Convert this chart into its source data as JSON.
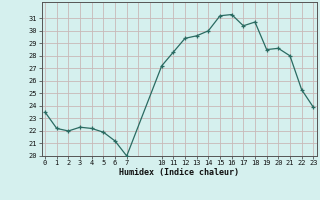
{
  "x": [
    0,
    1,
    2,
    3,
    4,
    5,
    6,
    7,
    10,
    11,
    12,
    13,
    14,
    15,
    16,
    17,
    18,
    19,
    20,
    21,
    22,
    23
  ],
  "y": [
    23.5,
    22.2,
    22.0,
    22.3,
    22.2,
    21.9,
    21.2,
    20.0,
    27.2,
    28.3,
    29.4,
    29.6,
    30.0,
    31.2,
    31.3,
    30.4,
    30.7,
    28.5,
    28.6,
    28.0,
    25.3,
    23.9
  ],
  "line_color": "#2a6b62",
  "marker": "+",
  "marker_color": "#2a6b62",
  "bg_color": "#d5f0ee",
  "grid_h_color": "#c8b8b8",
  "grid_v_color": "#c8b8b8",
  "xlabel": "Humidex (Indice chaleur)",
  "ylim": [
    20,
    32
  ],
  "yticks": [
    20,
    21,
    22,
    23,
    24,
    25,
    26,
    27,
    28,
    29,
    30,
    31
  ],
  "xticks": [
    0,
    1,
    2,
    3,
    4,
    5,
    6,
    7,
    10,
    11,
    12,
    13,
    14,
    15,
    16,
    17,
    18,
    19,
    20,
    21,
    22,
    23
  ],
  "xlim": [
    -0.3,
    23.3
  ]
}
